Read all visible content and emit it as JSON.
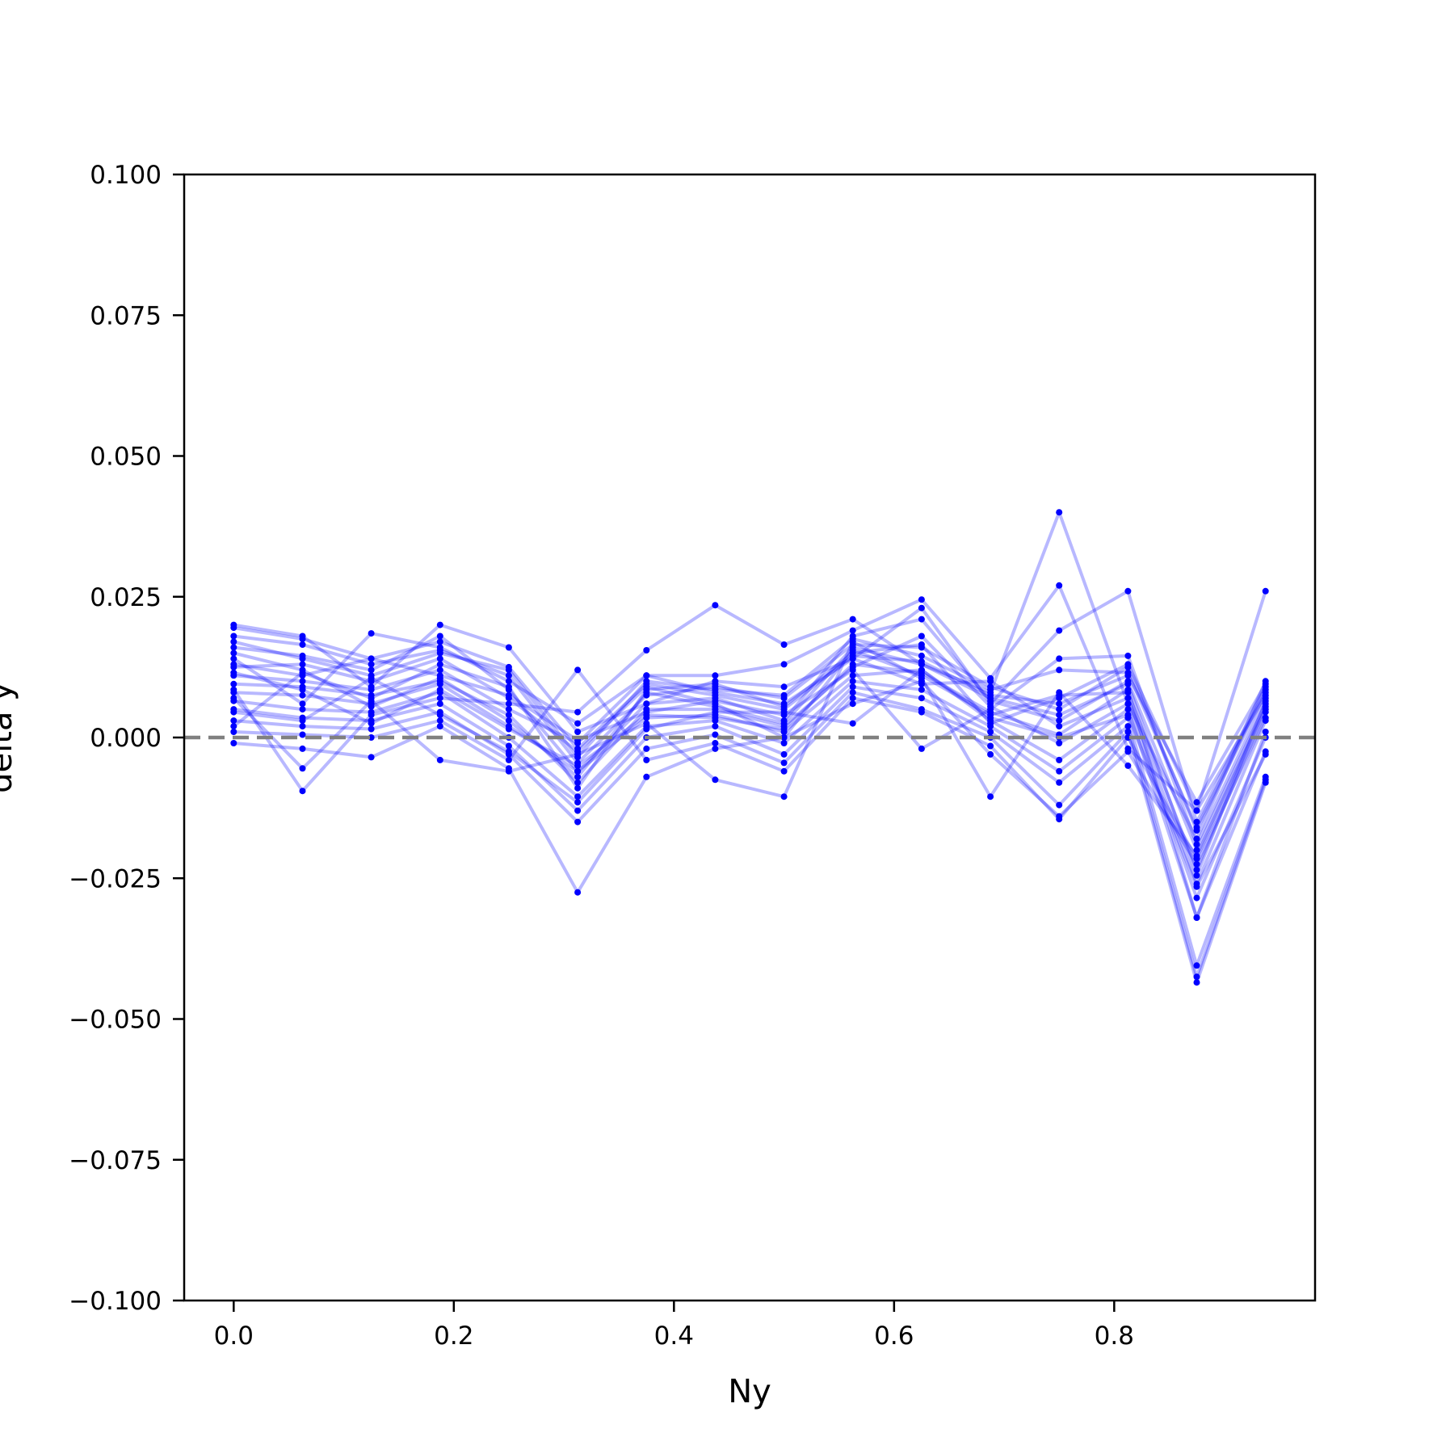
{
  "chart_data": {
    "type": "line",
    "title": "",
    "xlabel": "Ny",
    "ylabel": "delta y",
    "xlim": [
      -0.045,
      0.9825
    ],
    "ylim": [
      -0.1,
      0.1
    ],
    "xticks": [
      0.0,
      0.2,
      0.4,
      0.6,
      0.8
    ],
    "xtick_labels": [
      "0.0",
      "0.2",
      "0.4",
      "0.6",
      "0.8"
    ],
    "yticks": [
      0.1,
      0.075,
      0.05,
      0.025,
      0.0,
      -0.025,
      -0.05,
      -0.075,
      -0.1
    ],
    "ytick_labels": [
      "0.100",
      "0.075",
      "0.050",
      "0.025",
      "0.000",
      "−0.025",
      "−0.050",
      "−0.075",
      "−0.100"
    ],
    "grid": false,
    "reference_line": {
      "y": 0.0,
      "style": "dashed",
      "color": "#808080"
    },
    "series_color": "#0000ff",
    "series_alpha": 0.28,
    "x": [
      0.0,
      0.0625,
      0.125,
      0.1875,
      0.25,
      0.3125,
      0.375,
      0.4375,
      0.5,
      0.5625,
      0.625,
      0.6875,
      0.75,
      0.8125,
      0.875,
      0.9375
    ],
    "series": [
      {
        "values": [
          0.0195,
          0.0175,
          0.014,
          0.017,
          0.0125,
          -0.002,
          0.0095,
          0.0075,
          0.005,
          0.0145,
          0.0135,
          0.0075,
          0.006,
          0.011,
          -0.0115,
          0.0095
        ]
      },
      {
        "values": [
          0.018,
          0.0165,
          0.013,
          0.0155,
          0.011,
          -0.0045,
          0.0075,
          0.009,
          0.007,
          0.0165,
          0.016,
          0.009,
          0.005,
          0.0125,
          -0.0165,
          0.008
        ]
      },
      {
        "values": [
          0.016,
          0.0145,
          0.012,
          0.018,
          0.0085,
          -0.006,
          0.006,
          0.007,
          0.003,
          0.018,
          0.021,
          0.0065,
          0.003,
          0.01,
          -0.02,
          0.006
        ]
      },
      {
        "values": [
          0.0125,
          0.013,
          0.01,
          0.014,
          0.007,
          -0.0025,
          0.009,
          0.006,
          0.0,
          0.0155,
          0.011,
          0.004,
          0.0075,
          0.008,
          -0.0235,
          0.0045
        ]
      },
      {
        "values": [
          0.011,
          0.01,
          0.0085,
          0.012,
          0.005,
          -0.001,
          0.011,
          0.008,
          0.006,
          0.014,
          0.0095,
          0.01,
          0.002,
          0.007,
          -0.026,
          0.003
        ]
      },
      {
        "values": [
          0.0095,
          0.009,
          0.0075,
          0.01,
          0.004,
          -0.008,
          0.005,
          0.005,
          0.002,
          0.0125,
          0.018,
          0.0055,
          -0.001,
          0.006,
          -0.0285,
          0.0
        ]
      },
      {
        "values": [
          0.008,
          0.0075,
          0.006,
          0.0095,
          0.002,
          -0.006,
          0.0035,
          0.004,
          0.001,
          0.011,
          0.012,
          0.003,
          -0.004,
          0.005,
          -0.032,
          -0.0025
        ]
      },
      {
        "values": [
          0.0065,
          0.005,
          0.0045,
          0.008,
          0.0,
          -0.0105,
          0.002,
          0.003,
          -0.001,
          0.01,
          0.0085,
          0.002,
          -0.006,
          0.0035,
          -0.0405,
          -0.007
        ]
      },
      {
        "values": [
          0.005,
          0.0035,
          0.003,
          0.006,
          -0.0015,
          -0.013,
          0.0,
          0.002,
          -0.003,
          0.009,
          0.007,
          0.001,
          -0.008,
          0.002,
          -0.0425,
          -0.0075
        ]
      },
      {
        "values": [
          0.003,
          0.002,
          0.0015,
          0.0045,
          -0.003,
          -0.015,
          -0.002,
          0.0005,
          -0.0045,
          0.008,
          0.005,
          0.0,
          -0.012,
          0.001,
          -0.0435,
          -0.008
        ]
      },
      {
        "values": [
          0.001,
          0.0005,
          0.0,
          0.003,
          -0.004,
          0.012,
          -0.004,
          -0.001,
          -0.006,
          0.007,
          0.0045,
          -0.0015,
          -0.0145,
          0.0,
          -0.0215,
          0.005
        ]
      },
      {
        "values": [
          -0.001,
          -0.002,
          -0.0035,
          0.002,
          -0.0055,
          -0.0275,
          -0.007,
          -0.002,
          0.0,
          0.006,
          0.01,
          -0.003,
          -0.014,
          -0.0025,
          -0.0225,
          0.0035
        ]
      },
      {
        "values": [
          0.0085,
          -0.0095,
          0.004,
          0.007,
          0.006,
          0.0045,
          0.0155,
          0.0235,
          0.0165,
          0.021,
          0.013,
          0.008,
          0.04,
          0.006,
          -0.018,
          0.01
        ]
      },
      {
        "values": [
          0.014,
          0.006,
          0.0185,
          0.016,
          0.01,
          0.0025,
          0.011,
          0.011,
          0.013,
          0.019,
          0.0245,
          0.0105,
          0.027,
          -0.002,
          -0.013,
          0.026
        ]
      },
      {
        "values": [
          0.02,
          0.018,
          0.009,
          0.02,
          0.016,
          0.001,
          0.006,
          0.01,
          0.009,
          0.014,
          0.023,
          0.006,
          0.019,
          0.026,
          -0.015,
          0.009
        ]
      },
      {
        "values": [
          0.013,
          0.011,
          0.014,
          0.011,
          0.0075,
          -0.0005,
          0.0045,
          0.0065,
          0.004,
          0.012,
          -0.002,
          0.005,
          0.014,
          0.0145,
          -0.019,
          0.007
        ]
      },
      {
        "values": [
          0.007,
          -0.0055,
          0.0065,
          -0.004,
          -0.006,
          -0.003,
          0.0025,
          -0.0075,
          -0.0105,
          0.017,
          0.0105,
          -0.0105,
          0.008,
          -0.005,
          -0.021,
          0.0055
        ]
      },
      {
        "values": [
          0.017,
          0.014,
          0.011,
          0.015,
          0.012,
          -0.0035,
          0.01,
          0.0085,
          0.0075,
          0.0175,
          0.0145,
          0.0085,
          0.012,
          0.0115,
          -0.016,
          0.0085
        ]
      },
      {
        "values": [
          0.015,
          0.012,
          0.0055,
          0.0105,
          0.003,
          -0.007,
          0.008,
          0.0055,
          0.0025,
          0.016,
          0.013,
          0.007,
          0.004,
          0.0095,
          -0.0245,
          0.0065
        ]
      },
      {
        "values": [
          0.0115,
          0.0085,
          0.0025,
          0.0085,
          0.0015,
          -0.005,
          0.004,
          0.0035,
          0.0015,
          0.013,
          0.0115,
          0.0045,
          0.0005,
          0.0085,
          -0.032,
          0.001
        ]
      },
      {
        "values": [
          0.0045,
          0.003,
          0.0105,
          0.004,
          -0.0025,
          -0.0115,
          0.0015,
          0.0045,
          0.0045,
          0.0025,
          0.012,
          0.0035,
          0.0,
          0.004,
          -0.0265,
          -0.003
        ]
      },
      {
        "values": [
          0.002,
          0.0115,
          0.007,
          0.013,
          0.009,
          -0.009,
          0.0085,
          0.0095,
          0.0055,
          0.015,
          0.0165,
          0.0025,
          0.007,
          0.013,
          -0.013,
          0.0075
        ]
      }
    ]
  }
}
